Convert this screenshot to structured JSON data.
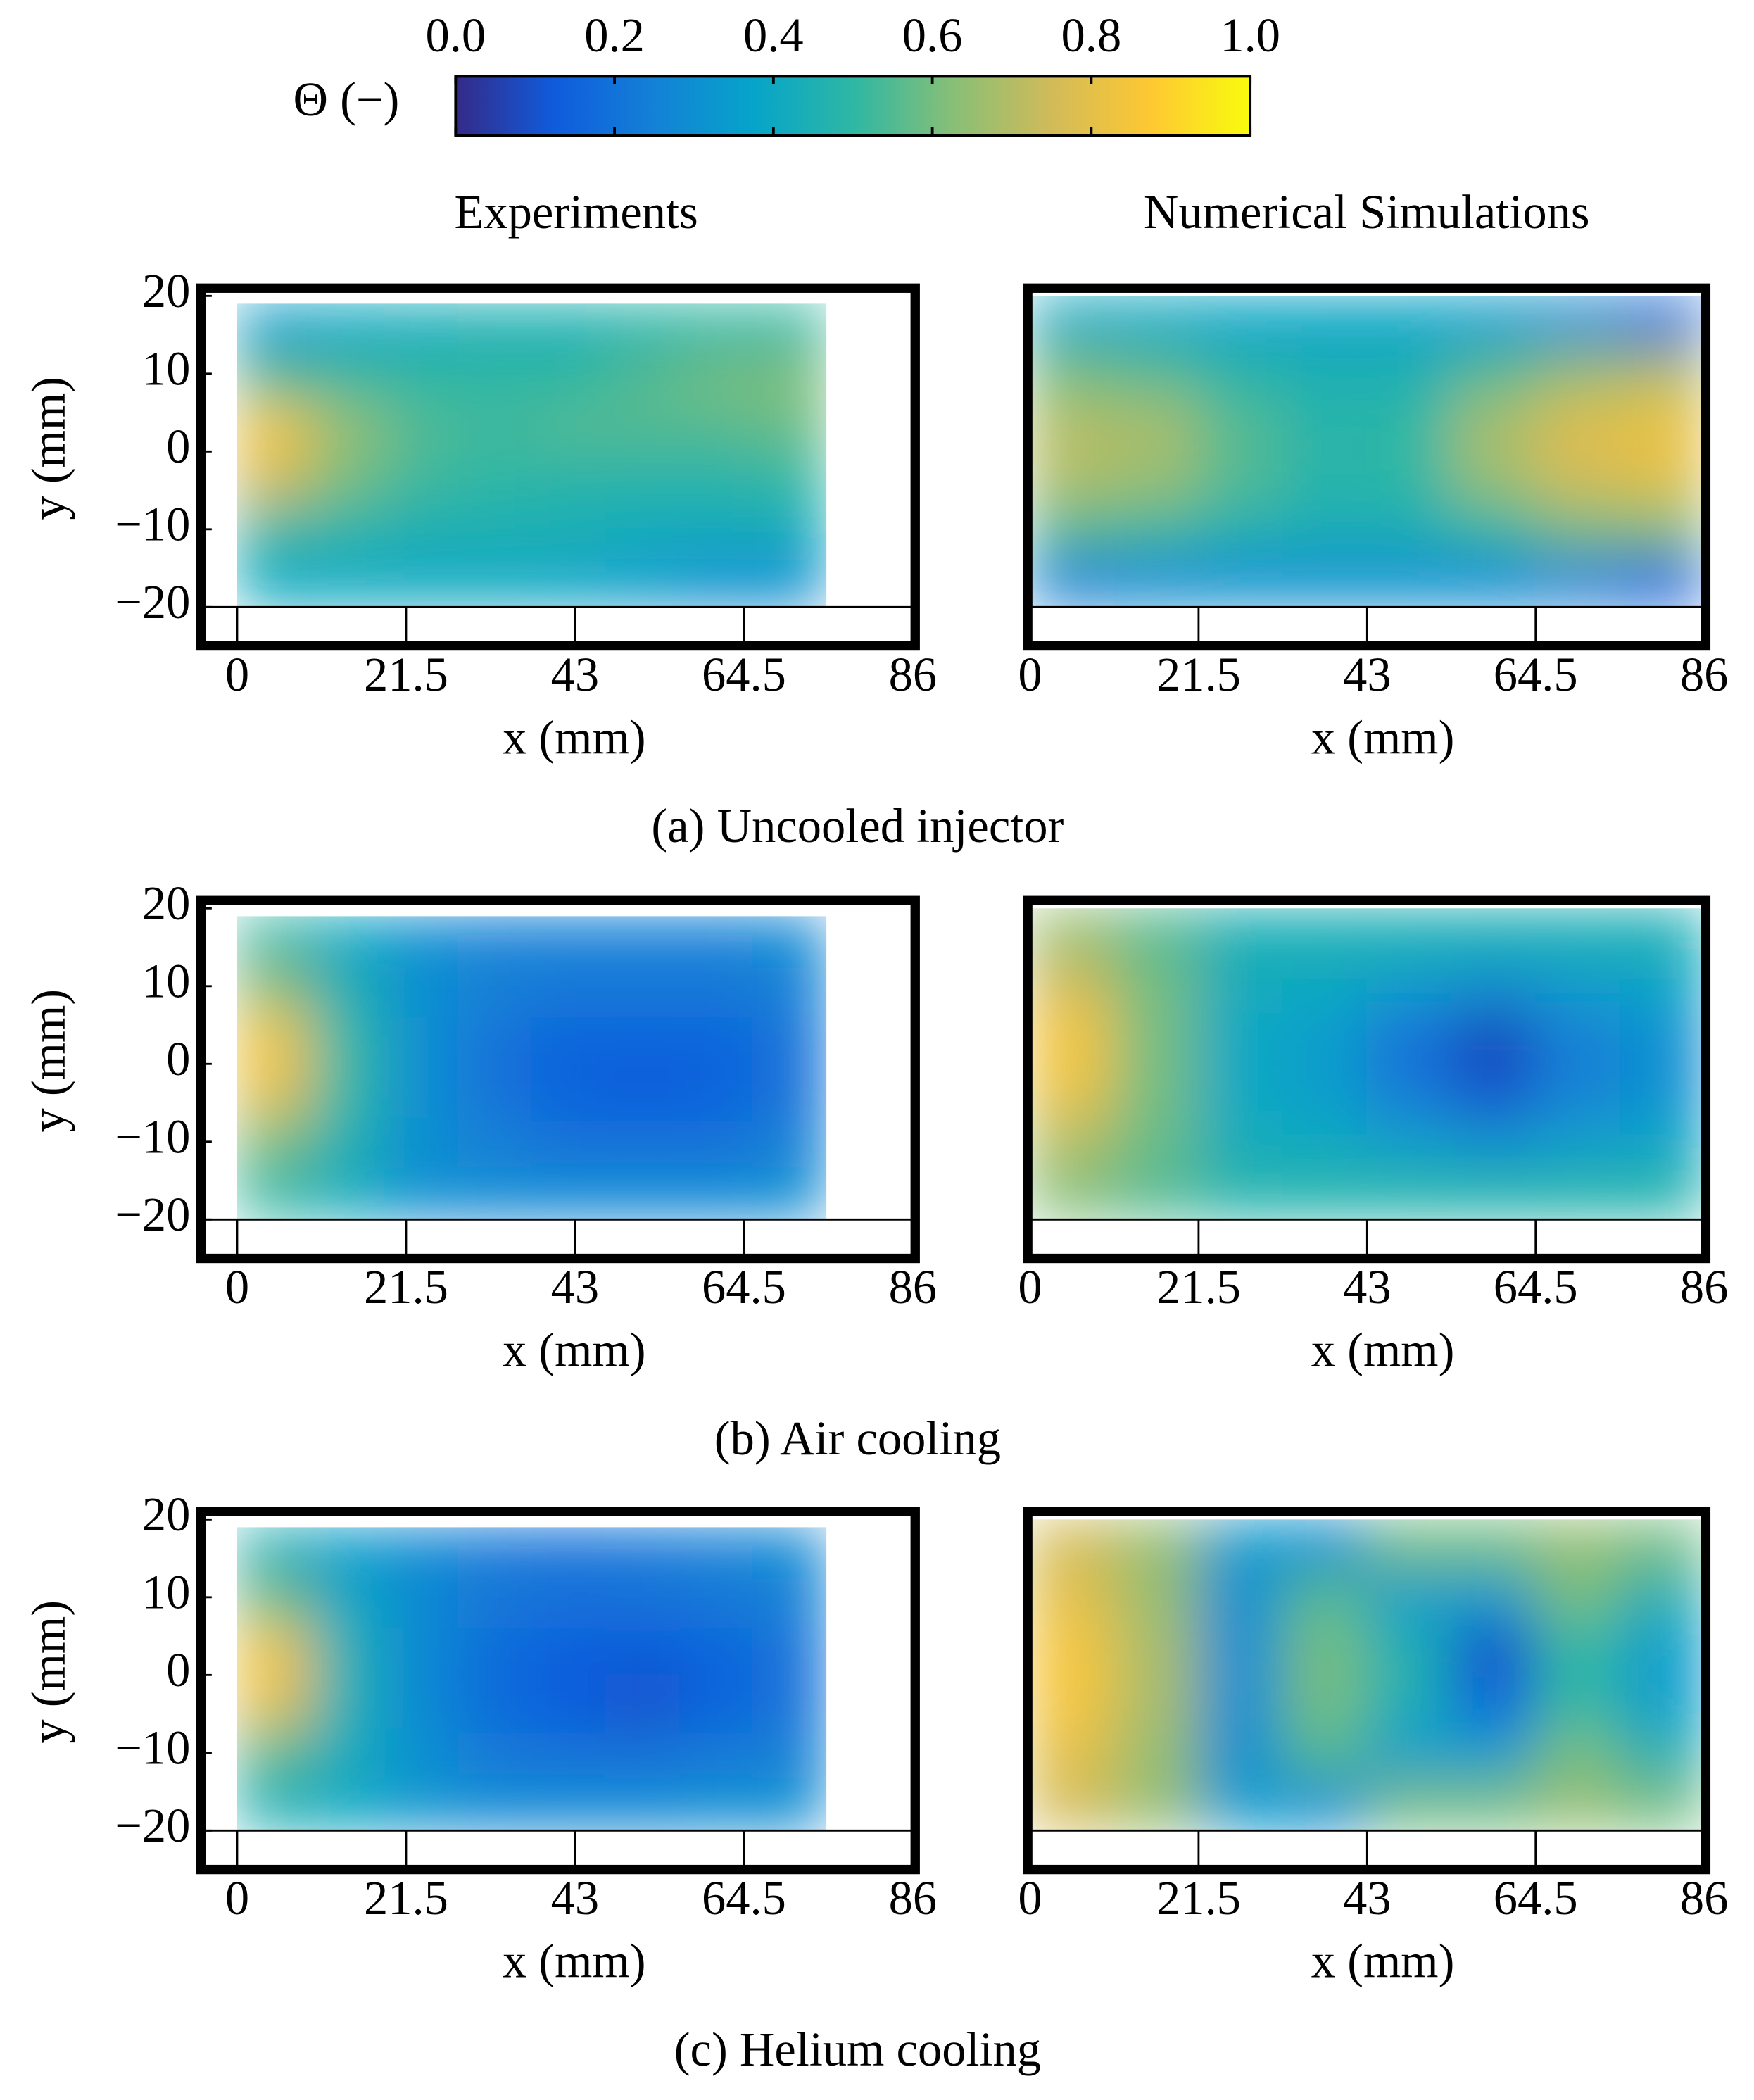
{
  "colorbar": {
    "label": "Θ (−)",
    "lim": [
      0,
      1
    ],
    "ticks": [
      {
        "value": 0,
        "label": "0.0"
      },
      {
        "value": 0.2,
        "label": "0.2"
      },
      {
        "value": 0.4,
        "label": "0.4"
      },
      {
        "value": 0.6,
        "label": "0.6"
      },
      {
        "value": 0.8,
        "label": "0.8"
      },
      {
        "value": 1,
        "label": "1.0"
      }
    ],
    "colormap": [
      "#352a87",
      "#0f5cdd",
      "#1481d6",
      "#06a4ca",
      "#2eb7a4",
      "#87bf77",
      "#d1bb59",
      "#fec832",
      "#f9fb0e"
    ]
  },
  "column_titles": [
    "Experiments",
    "Numerical Simulations"
  ],
  "captions": [
    "(a) Uncooled injector",
    "(b) Air cooling",
    "(c) Helium cooling"
  ],
  "chart_data": [
    {
      "type": "heatmap",
      "xlabel": "x (mm)",
      "ylabel": "y (mm)",
      "xlim": [
        -4.6,
        86.3
      ],
      "ylim": [
        -25,
        21
      ],
      "xticks": [
        0,
        21.5,
        43,
        64.5,
        86
      ],
      "yticks": [
        {
          "value": -20,
          "label": "−20"
        },
        {
          "value": -10,
          "label": "−10"
        },
        0,
        10,
        20
      ],
      "x_extent": [
        0,
        75
      ],
      "y_extent": [
        -20,
        19
      ],
      "values": [
        [
          0.35,
          0.4,
          0.42,
          0.45,
          0.45,
          0.48,
          0.5,
          0.5
        ],
        [
          0.55,
          0.52,
          0.5,
          0.5,
          0.5,
          0.55,
          0.6,
          0.62
        ],
        [
          0.85,
          0.65,
          0.55,
          0.52,
          0.55,
          0.55,
          0.55,
          0.58
        ],
        [
          0.75,
          0.6,
          0.52,
          0.5,
          0.48,
          0.48,
          0.48,
          0.5
        ],
        [
          0.5,
          0.48,
          0.45,
          0.45,
          0.45,
          0.42,
          0.42,
          0.42
        ],
        [
          0.4,
          0.4,
          0.4,
          0.4,
          0.38,
          0.35,
          0.3,
          0.3
        ]
      ]
    },
    {
      "type": "heatmap",
      "xlabel": "x (mm)",
      "xlim": [
        -0.3,
        86.2
      ],
      "ylim": [
        -25,
        21
      ],
      "xticks": [
        0,
        21.5,
        43,
        64.5,
        86
      ],
      "x_extent": [
        0,
        86
      ],
      "y_extent": [
        -20,
        20
      ],
      "values": [
        [
          0.4,
          0.4,
          0.38,
          0.38,
          0.38,
          0.35,
          0.3,
          0.2
        ],
        [
          0.6,
          0.55,
          0.48,
          0.45,
          0.45,
          0.55,
          0.65,
          0.7
        ],
        [
          0.7,
          0.68,
          0.55,
          0.48,
          0.5,
          0.68,
          0.78,
          0.82
        ],
        [
          0.7,
          0.66,
          0.55,
          0.48,
          0.5,
          0.66,
          0.76,
          0.8
        ],
        [
          0.55,
          0.52,
          0.46,
          0.44,
          0.44,
          0.5,
          0.6,
          0.62
        ],
        [
          0.25,
          0.28,
          0.3,
          0.3,
          0.3,
          0.28,
          0.25,
          0.15
        ]
      ]
    },
    {
      "type": "heatmap",
      "xlabel": "x (mm)",
      "ylabel": "y (mm)",
      "xlim": [
        -4.6,
        86.3
      ],
      "ylim": [
        -25,
        21
      ],
      "xticks": [
        0,
        21.5,
        43,
        64.5,
        86
      ],
      "yticks": [
        {
          "value": -20,
          "label": "−20"
        },
        {
          "value": -10,
          "label": "−10"
        },
        0,
        10,
        20
      ],
      "x_extent": [
        0,
        75
      ],
      "y_extent": [
        -20,
        19
      ],
      "values": [
        [
          0.5,
          0.4,
          0.3,
          0.25,
          0.25,
          0.25,
          0.25,
          0.28
        ],
        [
          0.65,
          0.45,
          0.3,
          0.25,
          0.22,
          0.22,
          0.22,
          0.25
        ],
        [
          0.85,
          0.5,
          0.3,
          0.2,
          0.15,
          0.15,
          0.15,
          0.2
        ],
        [
          0.8,
          0.5,
          0.3,
          0.2,
          0.15,
          0.13,
          0.15,
          0.2
        ],
        [
          0.6,
          0.45,
          0.3,
          0.25,
          0.2,
          0.2,
          0.2,
          0.25
        ],
        [
          0.5,
          0.42,
          0.3,
          0.28,
          0.28,
          0.28,
          0.28,
          0.3
        ]
      ]
    },
    {
      "type": "heatmap",
      "xlabel": "x (mm)",
      "xlim": [
        -0.3,
        86.2
      ],
      "ylim": [
        -25,
        21
      ],
      "xticks": [
        0,
        21.5,
        43,
        64.5,
        86
      ],
      "x_extent": [
        0,
        86
      ],
      "y_extent": [
        -20,
        20
      ],
      "values": [
        [
          0.65,
          0.55,
          0.45,
          0.45,
          0.45,
          0.45,
          0.45,
          0.45
        ],
        [
          0.75,
          0.6,
          0.42,
          0.4,
          0.35,
          0.3,
          0.35,
          0.38
        ],
        [
          0.85,
          0.6,
          0.4,
          0.35,
          0.2,
          0.08,
          0.25,
          0.3
        ],
        [
          0.82,
          0.6,
          0.4,
          0.35,
          0.22,
          0.1,
          0.25,
          0.3
        ],
        [
          0.7,
          0.58,
          0.42,
          0.4,
          0.35,
          0.3,
          0.35,
          0.38
        ],
        [
          0.62,
          0.55,
          0.48,
          0.48,
          0.48,
          0.48,
          0.48,
          0.48
        ]
      ]
    },
    {
      "type": "heatmap",
      "xlabel": "x (mm)",
      "ylabel": "y (mm)",
      "xlim": [
        -4.6,
        86.3
      ],
      "ylim": [
        -25,
        21
      ],
      "xticks": [
        0,
        21.5,
        43,
        64.5,
        86
      ],
      "yticks": [
        {
          "value": -20,
          "label": "−20"
        },
        {
          "value": -10,
          "label": "−10"
        },
        0,
        10,
        20
      ],
      "x_extent": [
        0,
        75
      ],
      "y_extent": [
        -20,
        19
      ],
      "values": [
        [
          0.45,
          0.35,
          0.28,
          0.22,
          0.2,
          0.22,
          0.25,
          0.28
        ],
        [
          0.6,
          0.4,
          0.28,
          0.22,
          0.2,
          0.2,
          0.22,
          0.25
        ],
        [
          0.85,
          0.45,
          0.28,
          0.18,
          0.13,
          0.12,
          0.15,
          0.2
        ],
        [
          0.8,
          0.45,
          0.28,
          0.18,
          0.13,
          0.1,
          0.15,
          0.2
        ],
        [
          0.55,
          0.42,
          0.3,
          0.22,
          0.2,
          0.2,
          0.22,
          0.25
        ],
        [
          0.45,
          0.4,
          0.32,
          0.28,
          0.28,
          0.28,
          0.3,
          0.3
        ]
      ]
    },
    {
      "type": "heatmap",
      "xlabel": "x (mm)",
      "xlim": [
        -0.3,
        86.2
      ],
      "ylim": [
        -25,
        21
      ],
      "xticks": [
        0,
        21.5,
        43,
        64.5,
        86
      ],
      "x_extent": [
        0,
        86
      ],
      "y_extent": [
        -20,
        20
      ],
      "values": [
        [
          0.75,
          0.65,
          0.35,
          0.3,
          0.6,
          0.6,
          0.65,
          0.6
        ],
        [
          0.8,
          0.65,
          0.3,
          0.55,
          0.35,
          0.35,
          0.6,
          0.45
        ],
        [
          0.85,
          0.68,
          0.3,
          0.6,
          0.45,
          0.1,
          0.5,
          0.35
        ],
        [
          0.85,
          0.68,
          0.3,
          0.6,
          0.45,
          0.15,
          0.5,
          0.35
        ],
        [
          0.8,
          0.65,
          0.3,
          0.55,
          0.35,
          0.35,
          0.6,
          0.45
        ],
        [
          0.75,
          0.65,
          0.35,
          0.3,
          0.6,
          0.6,
          0.65,
          0.6
        ]
      ]
    }
  ]
}
